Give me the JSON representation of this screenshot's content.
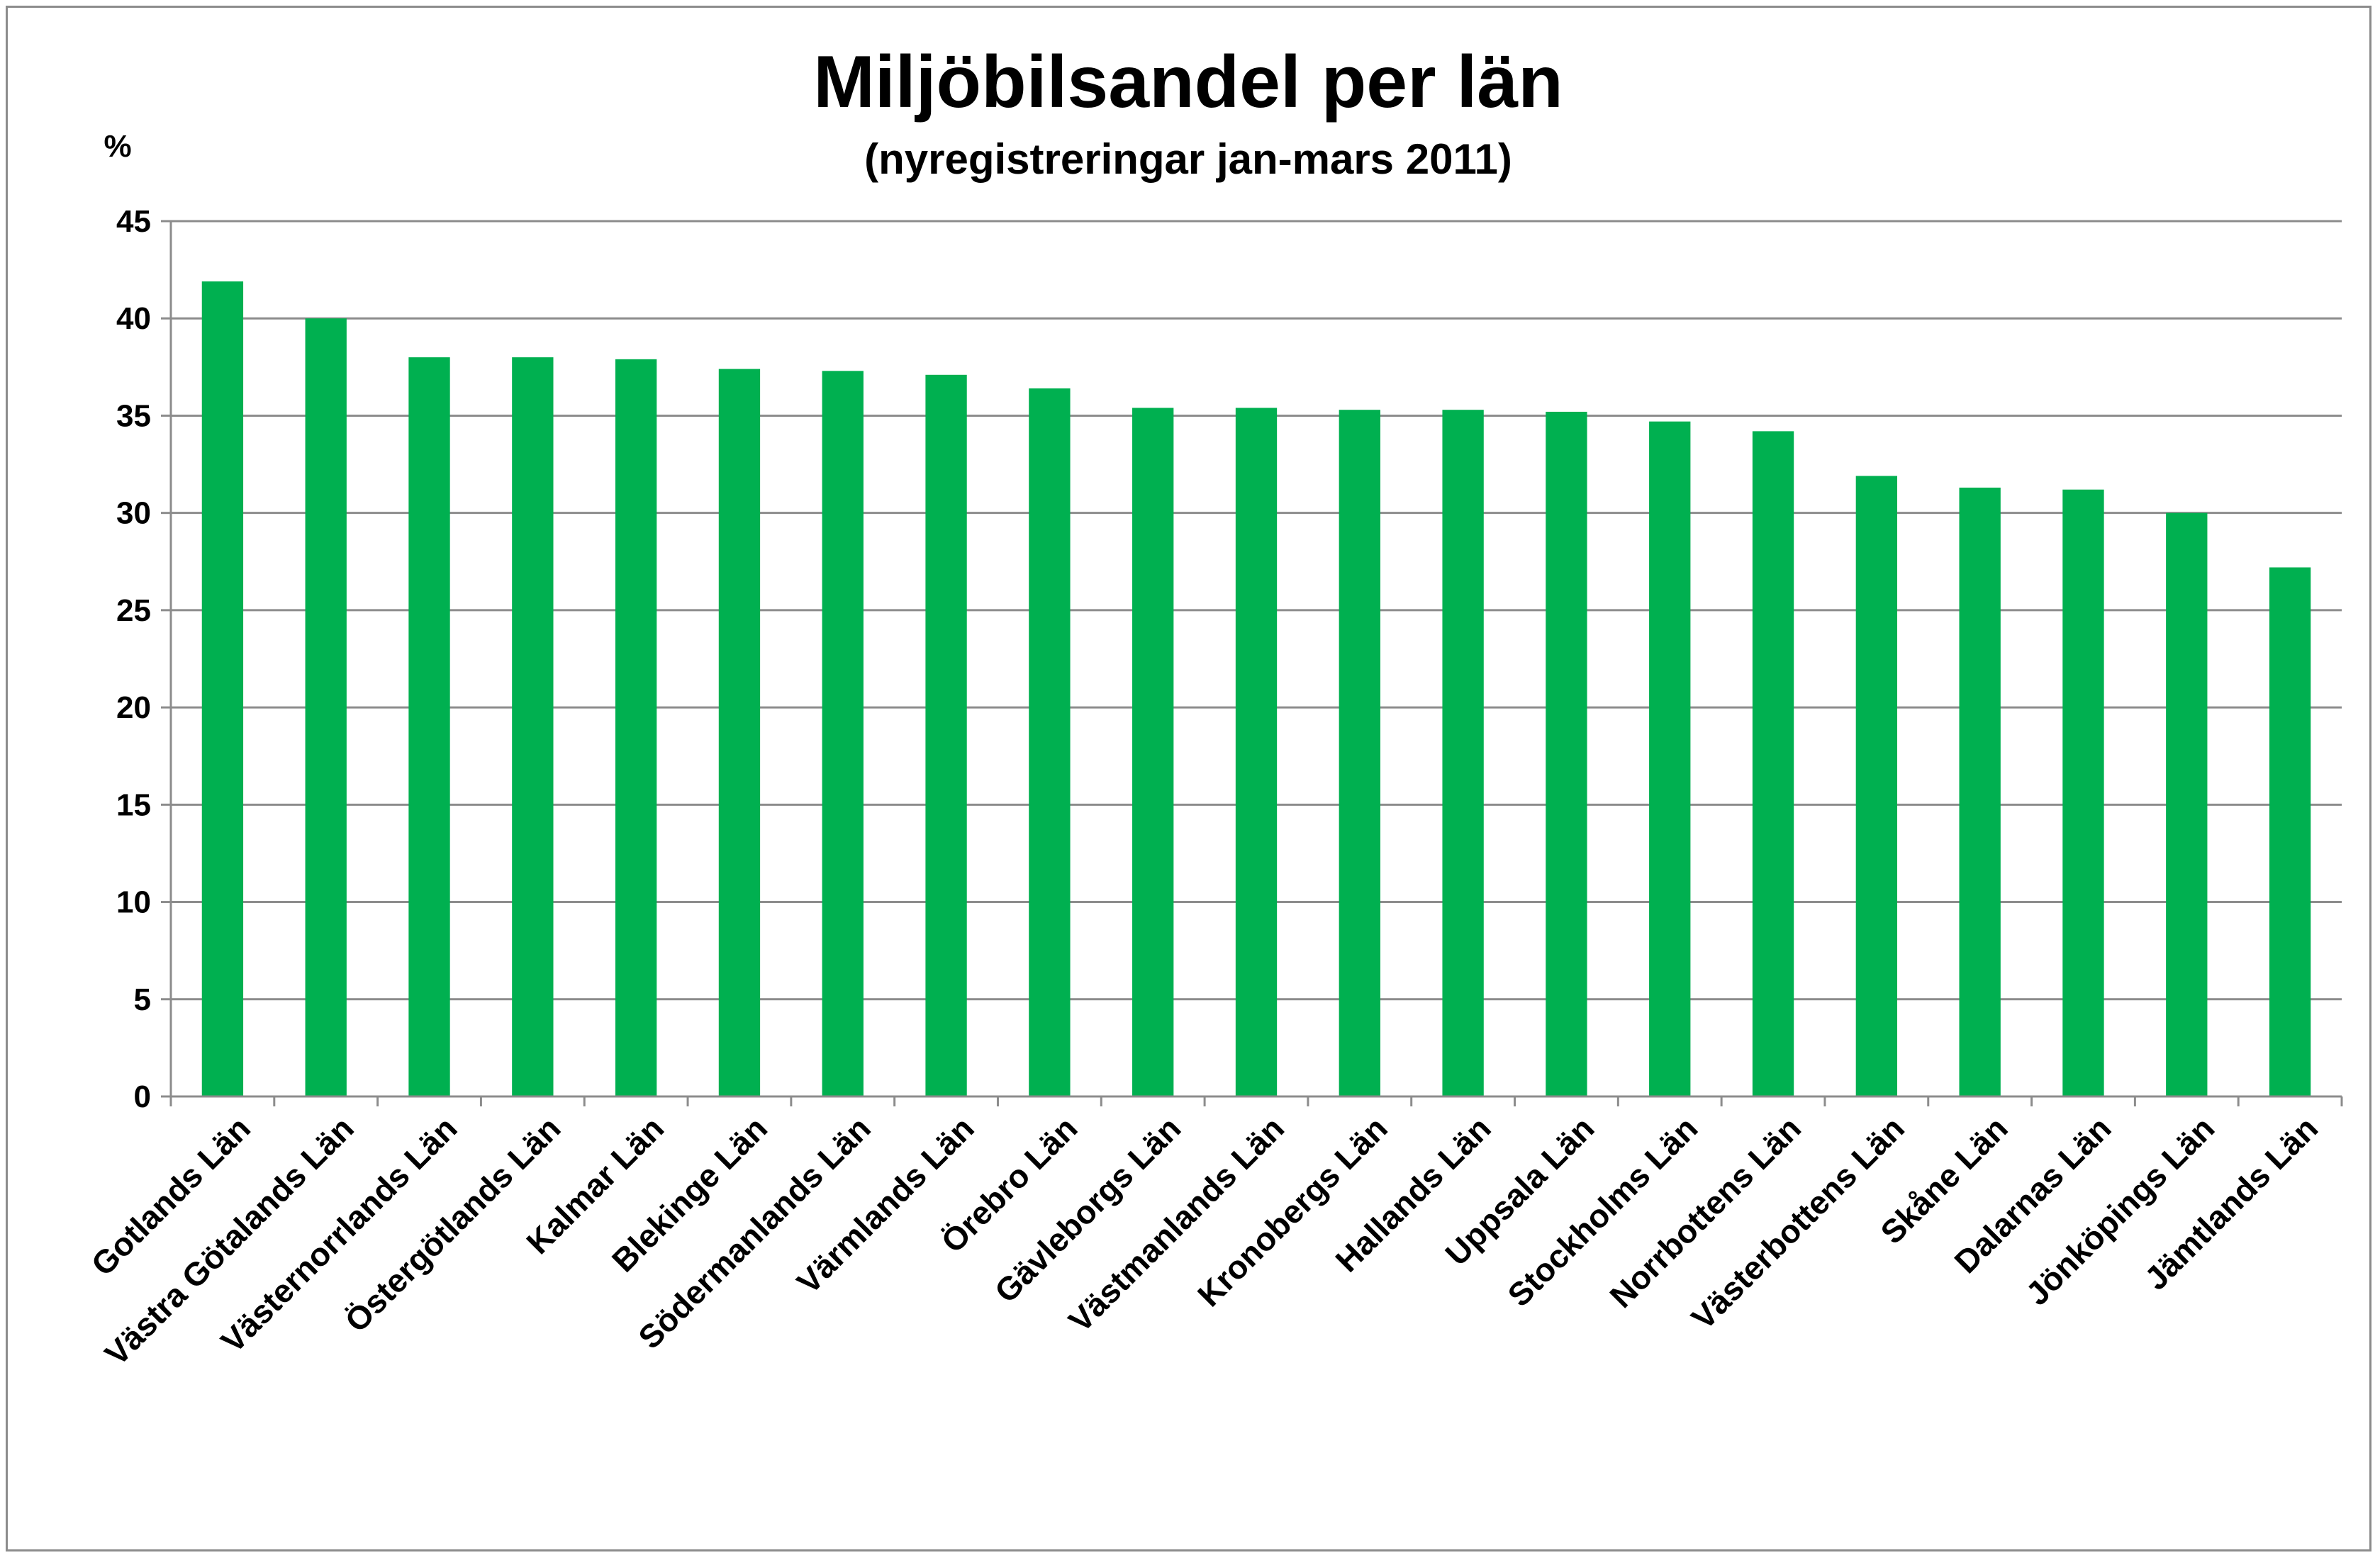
{
  "chart_data": {
    "type": "bar",
    "title": "Miljöbilsandel per län",
    "subtitle": "(nyregistreringar jan-mars 2011)",
    "ylabel": "%",
    "xlabel": "",
    "ylim": [
      0,
      45
    ],
    "yticks": [
      0,
      5,
      10,
      15,
      20,
      25,
      30,
      35,
      40,
      45
    ],
    "grid": true,
    "legend": "none",
    "bar_color": "#00b050",
    "categories": [
      "Gotlands Län",
      "Västra Götalands Län",
      "Västernorrlands Län",
      "Östergötlands Län",
      "Kalmar Län",
      "Blekinge Län",
      "Södermanlands Län",
      "Värmlands Län",
      "Örebro Län",
      "Gävleborgs Län",
      "Västmanlands Län",
      "Kronobergs Län",
      "Hallands Län",
      "Uppsala Län",
      "Stockholms Län",
      "Norrbottens Län",
      "Västerbottens Län",
      "Skåne Län",
      "Dalarnas Län",
      "Jönköpings Län",
      "Jämtlands Län"
    ],
    "values": [
      41.9,
      40.0,
      38.0,
      38.0,
      37.9,
      37.4,
      37.3,
      37.1,
      36.4,
      35.4,
      35.4,
      35.3,
      35.3,
      35.2,
      34.7,
      34.2,
      31.9,
      31.3,
      31.2,
      30.0,
      27.2
    ]
  }
}
